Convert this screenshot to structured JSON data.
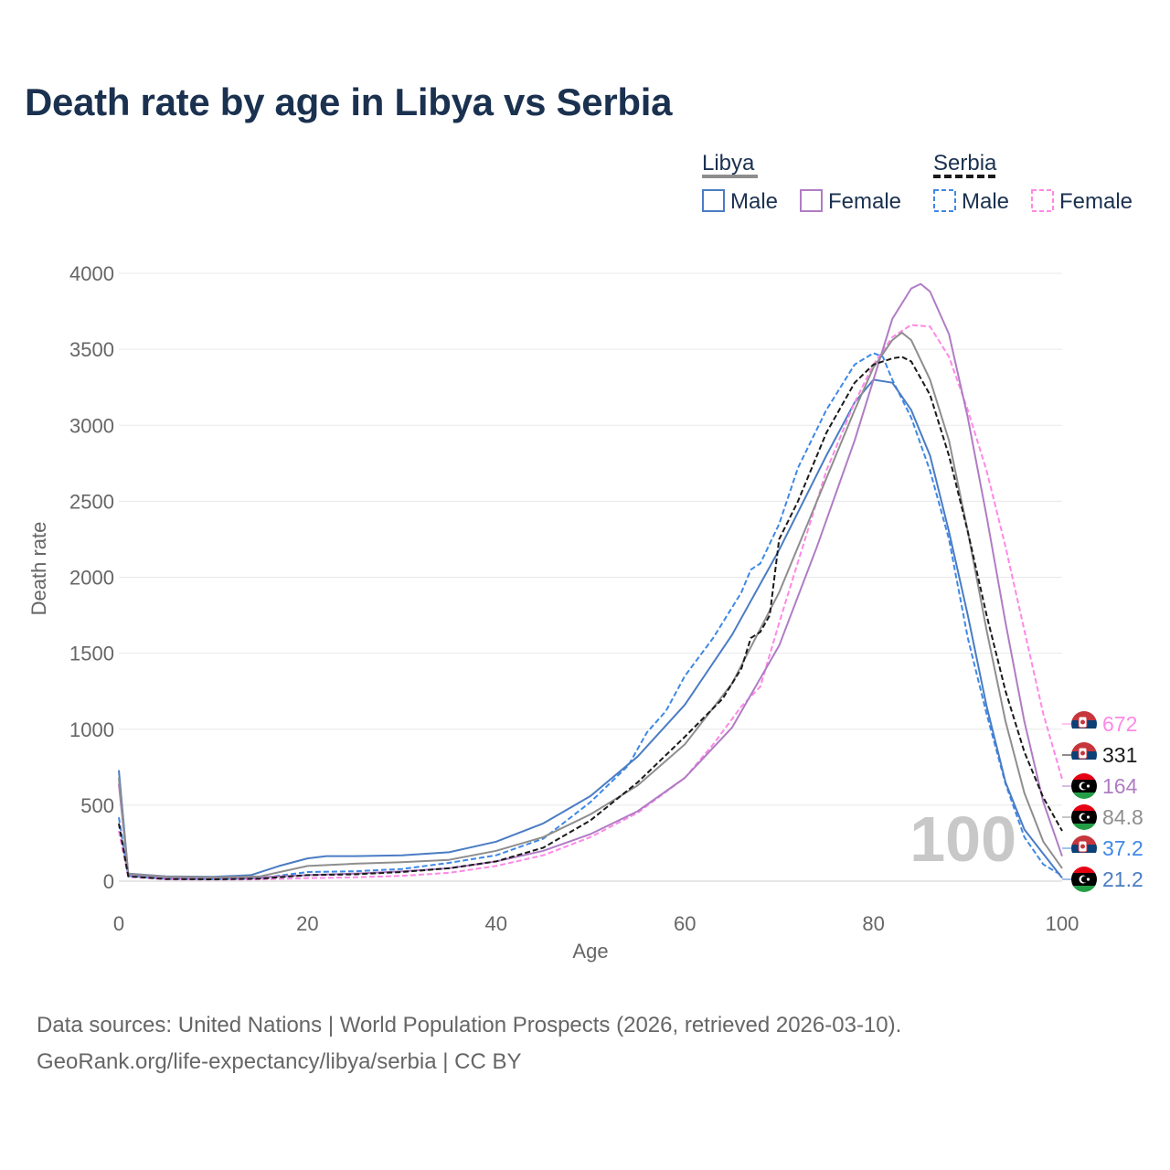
{
  "chart_data": {
    "type": "line",
    "title": "Death rate by age in Libya vs Serbia",
    "xlabel": "Age",
    "ylabel": "Death rate",
    "xlim": [
      0,
      100
    ],
    "ylim": [
      0,
      4000
    ],
    "x_ticks": [
      0,
      20,
      40,
      60,
      80,
      100
    ],
    "y_ticks": [
      0,
      500,
      1000,
      1500,
      2000,
      2500,
      3000,
      3500,
      4000
    ],
    "grid": true,
    "age_watermark": "100",
    "legend": {
      "groups": [
        {
          "country": "Libya",
          "items": [
            "Male",
            "Female"
          ]
        },
        {
          "country": "Serbia",
          "items": [
            "Male",
            "Female"
          ]
        }
      ]
    },
    "series": [
      {
        "name": "Libya Male",
        "country": "Libya",
        "sex": "Male",
        "color": "#4a7cc4",
        "dash": "solid",
        "points": [
          [
            0,
            730
          ],
          [
            1,
            50
          ],
          [
            5,
            32
          ],
          [
            10,
            28
          ],
          [
            14,
            40
          ],
          [
            17,
            100
          ],
          [
            20,
            150
          ],
          [
            22,
            165
          ],
          [
            25,
            165
          ],
          [
            30,
            170
          ],
          [
            35,
            190
          ],
          [
            40,
            260
          ],
          [
            45,
            380
          ],
          [
            50,
            560
          ],
          [
            55,
            820
          ],
          [
            60,
            1160
          ],
          [
            65,
            1620
          ],
          [
            70,
            2180
          ],
          [
            75,
            2800
          ],
          [
            78,
            3150
          ],
          [
            80,
            3300
          ],
          [
            82,
            3280
          ],
          [
            84,
            3100
          ],
          [
            86,
            2800
          ],
          [
            88,
            2300
          ],
          [
            90,
            1750
          ],
          [
            92,
            1150
          ],
          [
            94,
            650
          ],
          [
            96,
            340
          ],
          [
            98,
            180
          ],
          [
            100,
            21.2
          ]
        ]
      },
      {
        "name": "Libya Female",
        "country": "Libya",
        "sex": "Female",
        "color": "#b07cc4",
        "dash": "solid",
        "points": [
          [
            0,
            640
          ],
          [
            1,
            45
          ],
          [
            5,
            26
          ],
          [
            10,
            22
          ],
          [
            15,
            25
          ],
          [
            20,
            40
          ],
          [
            25,
            50
          ],
          [
            30,
            65
          ],
          [
            35,
            85
          ],
          [
            40,
            130
          ],
          [
            45,
            200
          ],
          [
            50,
            310
          ],
          [
            55,
            460
          ],
          [
            60,
            680
          ],
          [
            65,
            1010
          ],
          [
            70,
            1550
          ],
          [
            74,
            2200
          ],
          [
            78,
            2900
          ],
          [
            80,
            3300
          ],
          [
            82,
            3700
          ],
          [
            84,
            3900
          ],
          [
            85,
            3930
          ],
          [
            86,
            3880
          ],
          [
            88,
            3600
          ],
          [
            90,
            3050
          ],
          [
            92,
            2400
          ],
          [
            94,
            1700
          ],
          [
            96,
            1050
          ],
          [
            98,
            520
          ],
          [
            100,
            164
          ]
        ]
      },
      {
        "name": "Libya Total",
        "country": "Libya",
        "sex": "Total",
        "color": "#8e8e8e",
        "dash": "solid",
        "points": [
          [
            0,
            680
          ],
          [
            1,
            48
          ],
          [
            5,
            30
          ],
          [
            10,
            25
          ],
          [
            15,
            32
          ],
          [
            20,
            100
          ],
          [
            25,
            115
          ],
          [
            30,
            125
          ],
          [
            35,
            140
          ],
          [
            40,
            200
          ],
          [
            45,
            290
          ],
          [
            50,
            440
          ],
          [
            55,
            630
          ],
          [
            60,
            900
          ],
          [
            65,
            1300
          ],
          [
            70,
            1900
          ],
          [
            74,
            2500
          ],
          [
            78,
            3100
          ],
          [
            80,
            3380
          ],
          [
            82,
            3560
          ],
          [
            83,
            3610
          ],
          [
            84,
            3560
          ],
          [
            86,
            3300
          ],
          [
            88,
            2900
          ],
          [
            90,
            2300
          ],
          [
            92,
            1650
          ],
          [
            94,
            1050
          ],
          [
            96,
            580
          ],
          [
            98,
            260
          ],
          [
            100,
            84.8
          ]
        ]
      },
      {
        "name": "Serbia Male",
        "country": "Serbia",
        "sex": "Male",
        "color": "#3e88e6",
        "dash": "dashed",
        "points": [
          [
            0,
            420
          ],
          [
            1,
            35
          ],
          [
            5,
            15
          ],
          [
            10,
            12
          ],
          [
            15,
            20
          ],
          [
            20,
            60
          ],
          [
            25,
            65
          ],
          [
            30,
            80
          ],
          [
            35,
            120
          ],
          [
            40,
            170
          ],
          [
            45,
            280
          ],
          [
            50,
            520
          ],
          [
            54,
            760
          ],
          [
            56,
            980
          ],
          [
            58,
            1120
          ],
          [
            60,
            1350
          ],
          [
            63,
            1600
          ],
          [
            66,
            1900
          ],
          [
            67,
            2050
          ],
          [
            68,
            2090
          ],
          [
            70,
            2350
          ],
          [
            72,
            2720
          ],
          [
            75,
            3100
          ],
          [
            78,
            3400
          ],
          [
            80,
            3475
          ],
          [
            81,
            3450
          ],
          [
            82,
            3300
          ],
          [
            84,
            3050
          ],
          [
            86,
            2700
          ],
          [
            88,
            2250
          ],
          [
            90,
            1600
          ],
          [
            92,
            1100
          ],
          [
            94,
            640
          ],
          [
            96,
            290
          ],
          [
            98,
            110
          ],
          [
            100,
            37.2
          ]
        ]
      },
      {
        "name": "Serbia Female",
        "country": "Serbia",
        "sex": "Female",
        "color": "#ff88e6",
        "dash": "dashed",
        "points": [
          [
            0,
            330
          ],
          [
            1,
            28
          ],
          [
            5,
            12
          ],
          [
            10,
            10
          ],
          [
            15,
            12
          ],
          [
            20,
            20
          ],
          [
            25,
            25
          ],
          [
            30,
            35
          ],
          [
            35,
            55
          ],
          [
            40,
            100
          ],
          [
            45,
            170
          ],
          [
            50,
            290
          ],
          [
            55,
            450
          ],
          [
            60,
            680
          ],
          [
            63,
            900
          ],
          [
            66,
            1150
          ],
          [
            68,
            1280
          ],
          [
            70,
            1700
          ],
          [
            72,
            2100
          ],
          [
            75,
            2700
          ],
          [
            78,
            3150
          ],
          [
            80,
            3400
          ],
          [
            82,
            3580
          ],
          [
            84,
            3660
          ],
          [
            86,
            3650
          ],
          [
            88,
            3450
          ],
          [
            90,
            3100
          ],
          [
            92,
            2700
          ],
          [
            94,
            2200
          ],
          [
            96,
            1650
          ],
          [
            98,
            1100
          ],
          [
            100,
            672
          ]
        ]
      },
      {
        "name": "Serbia Total",
        "country": "Serbia",
        "sex": "Total",
        "color": "#1a1a1a",
        "dash": "dashed",
        "points": [
          [
            0,
            380
          ],
          [
            1,
            32
          ],
          [
            5,
            14
          ],
          [
            10,
            12
          ],
          [
            15,
            16
          ],
          [
            20,
            40
          ],
          [
            25,
            45
          ],
          [
            30,
            60
          ],
          [
            35,
            85
          ],
          [
            40,
            130
          ],
          [
            45,
            220
          ],
          [
            50,
            400
          ],
          [
            55,
            650
          ],
          [
            58,
            830
          ],
          [
            60,
            950
          ],
          [
            64,
            1200
          ],
          [
            66,
            1400
          ],
          [
            67,
            1600
          ],
          [
            68,
            1640
          ],
          [
            69,
            1750
          ],
          [
            70,
            2250
          ],
          [
            72,
            2500
          ],
          [
            75,
            2950
          ],
          [
            78,
            3280
          ],
          [
            80,
            3400
          ],
          [
            82,
            3440
          ],
          [
            83,
            3450
          ],
          [
            84,
            3420
          ],
          [
            86,
            3200
          ],
          [
            88,
            2800
          ],
          [
            90,
            2300
          ],
          [
            92,
            1750
          ],
          [
            94,
            1250
          ],
          [
            96,
            850
          ],
          [
            98,
            550
          ],
          [
            100,
            331
          ]
        ]
      }
    ],
    "end_labels": [
      {
        "value": "672",
        "color": "#ff88e6",
        "flag": "serbia"
      },
      {
        "value": "331",
        "color": "#1a1a1a",
        "flag": "serbia"
      },
      {
        "value": "164",
        "color": "#b07cc4",
        "flag": "libya"
      },
      {
        "value": "84.8",
        "color": "#8e8e8e",
        "flag": "libya"
      },
      {
        "value": "37.2",
        "color": "#3e88e6",
        "flag": "serbia"
      },
      {
        "value": "21.2",
        "color": "#4a7cc4",
        "flag": "libya"
      }
    ]
  },
  "footer": {
    "line1": "Data sources: United Nations | World Population Prospects (2026, retrieved 2026-03-10).",
    "line2": "GeoRank.org/life-expectancy/libya/serbia | CC BY"
  }
}
